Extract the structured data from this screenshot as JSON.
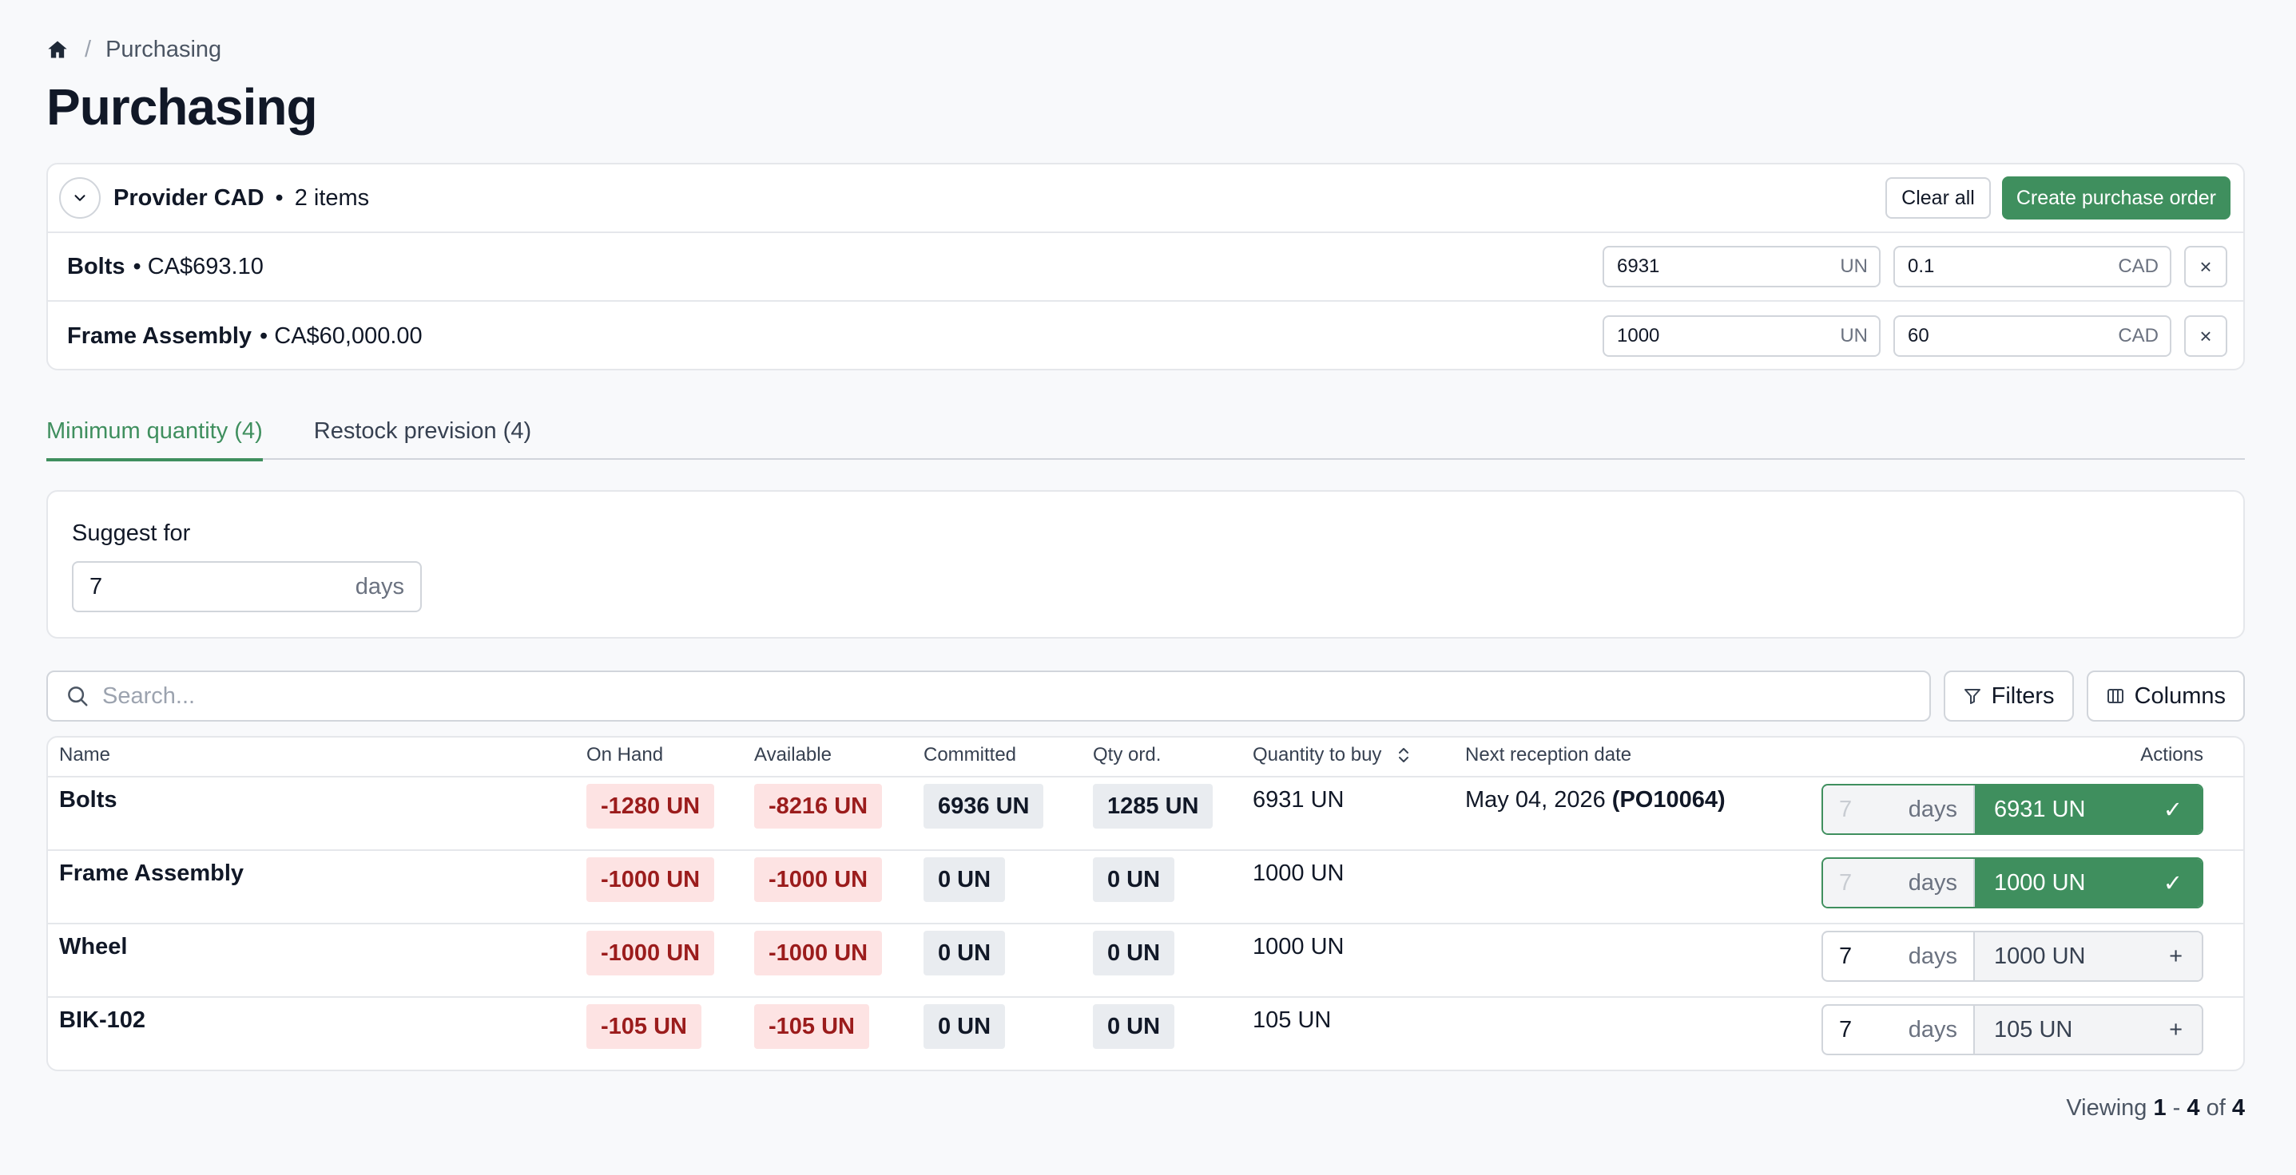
{
  "breadcrumb": {
    "home_icon": "home-icon",
    "current": "Purchasing"
  },
  "page_title": "Purchasing",
  "cart": {
    "provider": "Provider CAD",
    "dot": "•",
    "items_count": "2 items",
    "clear_label": "Clear all",
    "create_label": "Create purchase order",
    "rows": [
      {
        "name": "Bolts",
        "price": "• CA$693.10",
        "qty": "6931",
        "qty_unit": "UN",
        "cost": "0.1",
        "cost_unit": "CAD",
        "remove": "×"
      },
      {
        "name": "Frame Assembly",
        "price": "• CA$60,000.00",
        "qty": "1000",
        "qty_unit": "UN",
        "cost": "60",
        "cost_unit": "CAD",
        "remove": "×"
      }
    ]
  },
  "tabs": [
    {
      "label": "Minimum quantity (4)",
      "active": true
    },
    {
      "label": "Restock prevision (4)",
      "active": false
    }
  ],
  "suggest": {
    "label": "Suggest for",
    "value": "7",
    "unit": "days"
  },
  "toolbar": {
    "search_placeholder": "Search...",
    "filters_label": "Filters",
    "columns_label": "Columns"
  },
  "table": {
    "headers": {
      "name": "Name",
      "on_hand": "On Hand",
      "available": "Available",
      "committed": "Committed",
      "qty_ord": "Qty ord.",
      "qty_to_buy": "Quantity to buy",
      "next_reception": "Next reception date",
      "actions": "Actions"
    },
    "rows": [
      {
        "name": "Bolts",
        "on_hand": "-1280 UN",
        "available": "-8216 UN",
        "committed": "6936 UN",
        "qty_ord": "1285 UN",
        "qty_to_buy": "6931 UN",
        "next_date": "May 04, 2026",
        "next_po": "(PO10064)",
        "days": "7",
        "days_unit": "days",
        "action_qty": "6931 UN",
        "action_icon": "✓",
        "added": true
      },
      {
        "name": "Frame Assembly",
        "on_hand": "-1000 UN",
        "available": "-1000 UN",
        "committed": "0 UN",
        "qty_ord": "0 UN",
        "qty_to_buy": "1000 UN",
        "next_date": "",
        "next_po": "",
        "days": "7",
        "days_unit": "days",
        "action_qty": "1000 UN",
        "action_icon": "✓",
        "added": true
      },
      {
        "name": "Wheel",
        "on_hand": "-1000 UN",
        "available": "-1000 UN",
        "committed": "0 UN",
        "qty_ord": "0 UN",
        "qty_to_buy": "1000 UN",
        "next_date": "",
        "next_po": "",
        "days": "7",
        "days_unit": "days",
        "action_qty": "1000 UN",
        "action_icon": "+",
        "added": false
      },
      {
        "name": "BIK-102",
        "on_hand": "-105 UN",
        "available": "-105 UN",
        "committed": "0 UN",
        "qty_ord": "0 UN",
        "qty_to_buy": "105 UN",
        "next_date": "",
        "next_po": "",
        "days": "7",
        "days_unit": "days",
        "action_qty": "105 UN",
        "action_icon": "+",
        "added": false
      }
    ]
  },
  "pagination": {
    "prefix": "Viewing",
    "from": "1",
    "dash": "-",
    "to": "4",
    "of": "of",
    "total": "4"
  },
  "colors": {
    "accent_green": "#3f8f5e",
    "negative_bg": "#fde3e3",
    "negative_text": "#9b1c1c",
    "neutral_bg": "#e9ecf0"
  }
}
